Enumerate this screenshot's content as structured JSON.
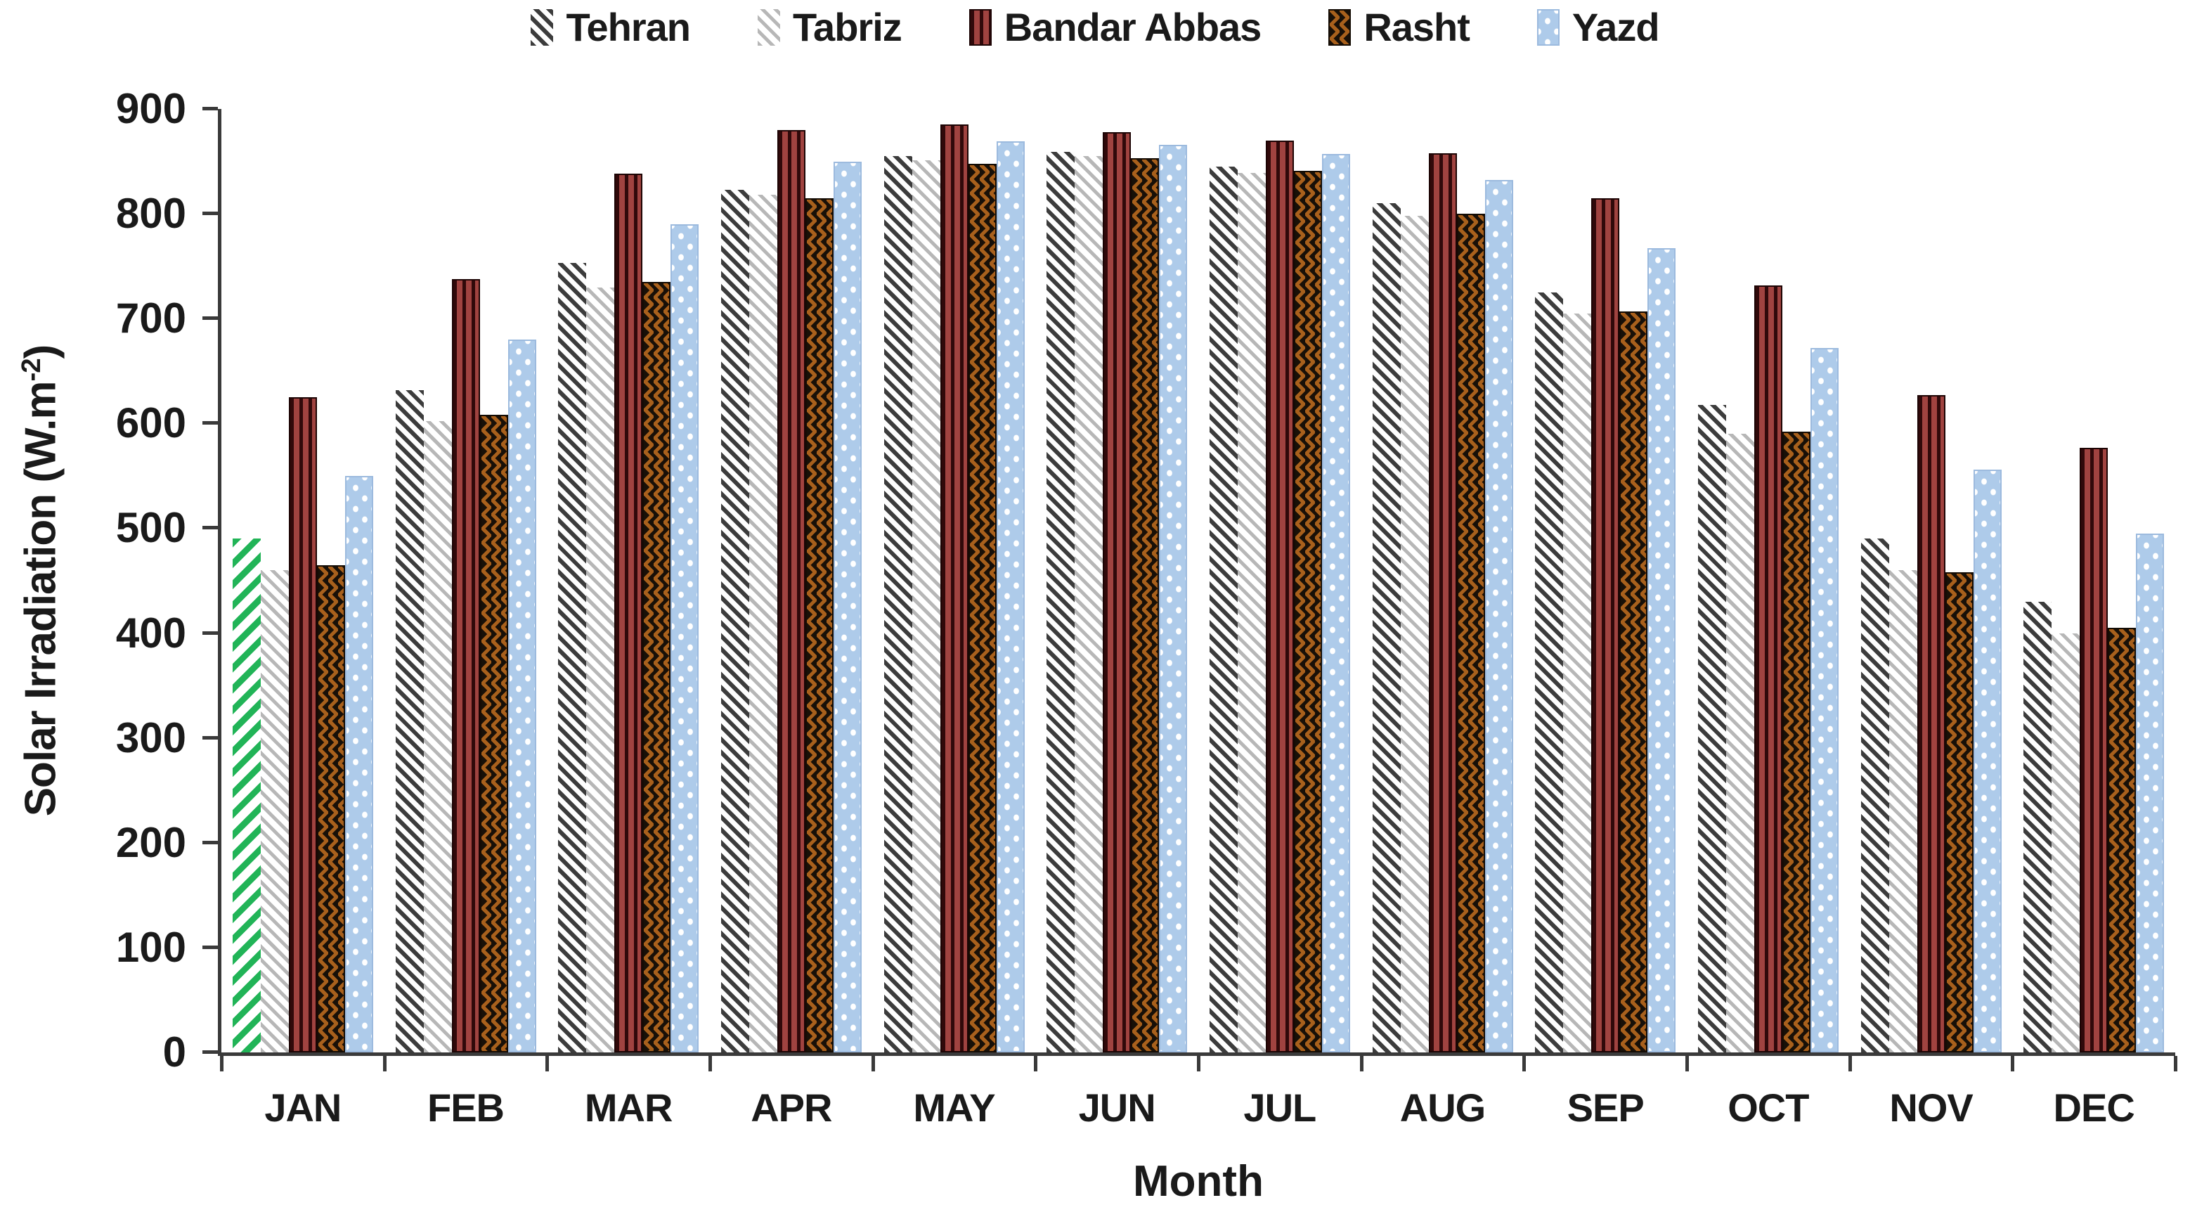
{
  "legend": {
    "position": "top",
    "items": [
      {
        "label": "Tehran",
        "pattern": "dark-diagonal-hatch"
      },
      {
        "label": "Tabriz",
        "pattern": "light-diagonal-hatch"
      },
      {
        "label": "Bandar Abbas",
        "pattern": "red-vertical-stripes"
      },
      {
        "label": "Rasht",
        "pattern": "brown-chevron"
      },
      {
        "label": "Yazd",
        "pattern": "blue-white-dots"
      }
    ]
  },
  "axes": {
    "y_title_main": "Solar Irradiation (W.m",
    "y_title_superscript": "-2",
    "y_title_close": ")",
    "x_title": "Month"
  },
  "chart_data": {
    "type": "bar",
    "title": "",
    "xlabel": "Month",
    "ylabel": "Solar Irradiation (W.m-2)",
    "ylim": [
      0,
      900
    ],
    "ytick_step": 100,
    "grid": false,
    "legend_position": "top",
    "categories": [
      "JAN",
      "FEB",
      "MAR",
      "APR",
      "MAY",
      "JUN",
      "JUL",
      "AUG",
      "SEP",
      "OCT",
      "NOV",
      "DEC"
    ],
    "series": [
      {
        "name": "Tehran",
        "values": [
          490,
          632,
          753,
          823,
          855,
          859,
          845,
          810,
          725,
          618,
          490,
          430
        ]
      },
      {
        "name": "Tabriz",
        "values": [
          460,
          602,
          730,
          818,
          851,
          855,
          839,
          798,
          705,
          590,
          460,
          400
        ]
      },
      {
        "name": "Bandar Abbas",
        "values": [
          625,
          738,
          838,
          880,
          885,
          878,
          870,
          858,
          815,
          732,
          627,
          577
        ]
      },
      {
        "name": "Rasht",
        "values": [
          465,
          608,
          735,
          815,
          848,
          853,
          841,
          800,
          707,
          592,
          458,
          405
        ]
      },
      {
        "name": "Yazd",
        "values": [
          550,
          680,
          790,
          850,
          869,
          866,
          857,
          832,
          767,
          672,
          556,
          495
        ]
      }
    ],
    "special_bar": {
      "category": "JAN",
      "series": "Tehran",
      "pattern": "green-diagonal-hatch"
    },
    "colors": {
      "tehran_hatch": "#3c3c3c",
      "tabriz_hatch": "#b7b7b7",
      "bandar_abbas_red": "#a04340",
      "bandar_abbas_stripe": "#30090a",
      "rasht_brown": "#a8601c",
      "rasht_chevron": "#181008",
      "yazd_blue": "#aecbea",
      "yazd_dot": "#ffffff",
      "jan_tehran_green": "#21b457",
      "axis": "#3a3a3a"
    }
  }
}
